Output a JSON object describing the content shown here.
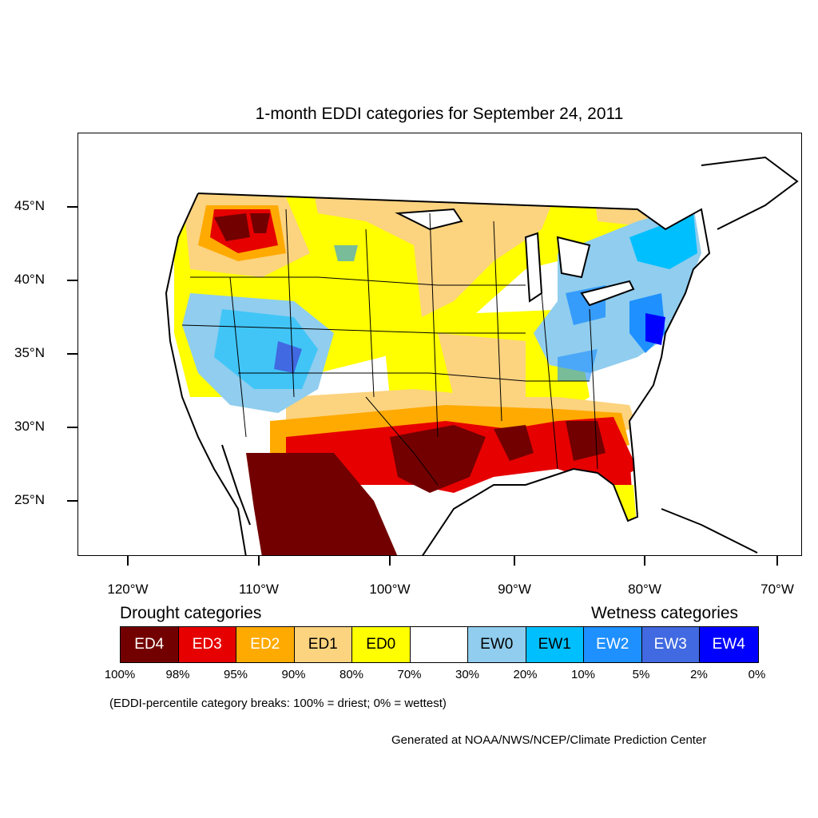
{
  "title": "1-month EDDI categories for September 24, 2011",
  "lat_labels": [
    "45°N",
    "40°N",
    "35°N",
    "30°N",
    "25°N"
  ],
  "lon_labels": [
    "120°W",
    "110°W",
    "100°W",
    "90°W",
    "80°W",
    "70°W"
  ],
  "legend": {
    "drought_heading": "Drought categories",
    "wetness_heading": "Wetness categories",
    "categories": [
      {
        "label": "ED4",
        "color": "#730000",
        "text_color": "#ffffff"
      },
      {
        "label": "ED3",
        "color": "#e60000",
        "text_color": "#ffffff"
      },
      {
        "label": "ED2",
        "color": "#ffaa00",
        "text_color": "#ffffff"
      },
      {
        "label": "ED1",
        "color": "#fcd37f",
        "text_color": "#000000"
      },
      {
        "label": "ED0",
        "color": "#ffff00",
        "text_color": "#000000"
      },
      {
        "label": "",
        "color": "#ffffff",
        "text_color": "#000000"
      },
      {
        "label": "EW0",
        "color": "#90cdee",
        "text_color": "#000000"
      },
      {
        "label": "EW1",
        "color": "#00bfff",
        "text_color": "#000000"
      },
      {
        "label": "EW2",
        "color": "#1e90ff",
        "text_color": "#ffffff"
      },
      {
        "label": "EW3",
        "color": "#4169e1",
        "text_color": "#ffffff"
      },
      {
        "label": "EW4",
        "color": "#0000ff",
        "text_color": "#ffffff"
      }
    ],
    "percent_breaks": [
      "100%",
      "98%",
      "95%",
      "90%",
      "80%",
      "70%",
      "30%",
      "20%",
      "10%",
      "5%",
      "2%",
      "0%"
    ]
  },
  "note": "(EDDI-percentile category breaks: 100% = driest; 0% = wettest)",
  "credit": "Generated at NOAA/NWS/NCEP/Climate Prediction Center"
}
